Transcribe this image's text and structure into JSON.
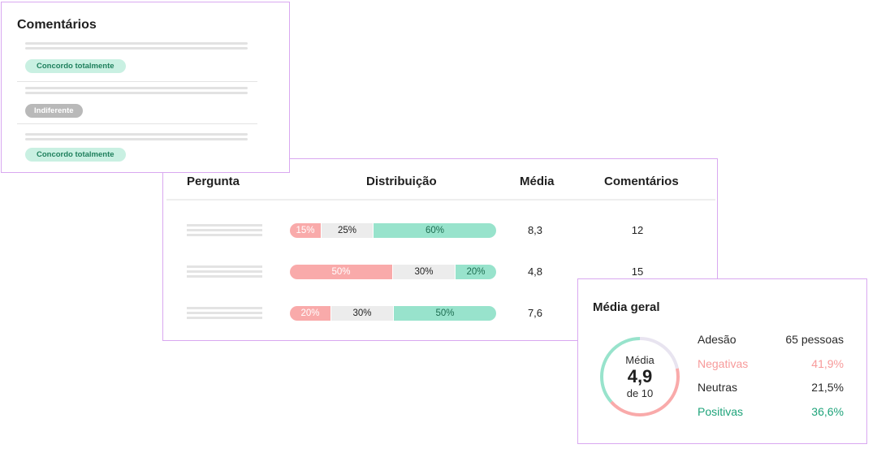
{
  "comments": {
    "title": "Comentários",
    "items": [
      {
        "tag": "Concordo totalmente",
        "tone": "green"
      },
      {
        "tag": "Indiferente",
        "tone": "grey"
      },
      {
        "tag": "Concordo totalmente",
        "tone": "green"
      }
    ]
  },
  "table": {
    "headers": {
      "question": "Pergunta",
      "distribution": "Distribuição",
      "average": "Média",
      "comments": "Comentários"
    },
    "rows": [
      {
        "negative": "15%",
        "neutral": "25%",
        "positive": "60%",
        "average": "8,3",
        "comments": "12",
        "dist": [
          15,
          25,
          60
        ]
      },
      {
        "negative": "50%",
        "neutral": "30%",
        "positive": "20%",
        "average": "4,8",
        "comments": "15",
        "dist": [
          50,
          30,
          20
        ]
      },
      {
        "negative": "20%",
        "neutral": "30%",
        "positive": "50%",
        "average": "7,6",
        "comments": "",
        "dist": [
          20,
          30,
          50
        ]
      }
    ]
  },
  "overall": {
    "title": "Média geral",
    "gauge": {
      "label": "Média",
      "value": "4,9",
      "scale": "de 10"
    },
    "stats": [
      {
        "label": "Adesão",
        "value": "65 pessoas",
        "tone": "plain"
      },
      {
        "label": "Negativas",
        "value": "41,9%",
        "tone": "neg"
      },
      {
        "label": "Neutras",
        "value": "21,5%",
        "tone": "plain"
      },
      {
        "label": "Positivas",
        "value": "36,6%",
        "tone": "pos"
      }
    ],
    "shares": {
      "negative": 41.9,
      "neutral": 21.5,
      "positive": 36.6
    }
  },
  "colors": {
    "negative": "#f9aaaa",
    "neutral": "#e8e4f0",
    "positive": "#98e3cc",
    "border": "#d9a8f0"
  }
}
